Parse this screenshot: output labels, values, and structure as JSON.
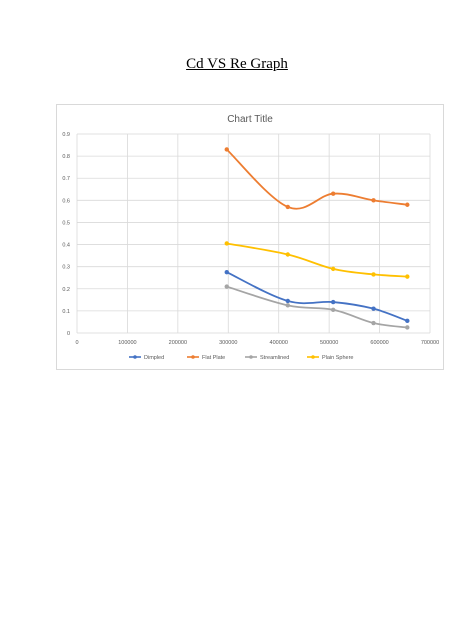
{
  "page": {
    "heading": "Cd VS Re Graph"
  },
  "chart_data": {
    "type": "line",
    "title": "Chart Title",
    "xlabel": "",
    "ylabel": "",
    "xlim": [
      0,
      700000
    ],
    "ylim": [
      0,
      0.9
    ],
    "x_ticks": [
      0,
      100000,
      200000,
      300000,
      400000,
      500000,
      600000,
      700000
    ],
    "y_ticks": [
      0,
      0.1,
      0.2,
      0.3,
      0.4,
      0.5,
      0.6,
      0.7,
      0.8,
      0.9
    ],
    "grid": true,
    "legend_position": "bottom",
    "smooth": true,
    "series": [
      {
        "name": "Dimpled",
        "color": "#4472C4",
        "points": [
          [
            297000,
            0.275
          ],
          [
            418000,
            0.145
          ],
          [
            508000,
            0.14
          ],
          [
            588000,
            0.11
          ],
          [
            655000,
            0.055
          ]
        ]
      },
      {
        "name": "Flat Plate",
        "color": "#ED7D31",
        "points": [
          [
            297000,
            0.83
          ],
          [
            418000,
            0.57
          ],
          [
            508000,
            0.63
          ],
          [
            588000,
            0.6
          ],
          [
            655000,
            0.58
          ]
        ]
      },
      {
        "name": "Streamlined",
        "color": "#A5A5A5",
        "points": [
          [
            297000,
            0.21
          ],
          [
            418000,
            0.125
          ],
          [
            508000,
            0.105
          ],
          [
            588000,
            0.045
          ],
          [
            655000,
            0.025
          ]
        ]
      },
      {
        "name": "Plain Sphere",
        "color": "#FFC000",
        "points": [
          [
            297000,
            0.405
          ],
          [
            418000,
            0.355
          ],
          [
            508000,
            0.29
          ],
          [
            588000,
            0.265
          ],
          [
            655000,
            0.255
          ]
        ]
      }
    ]
  }
}
